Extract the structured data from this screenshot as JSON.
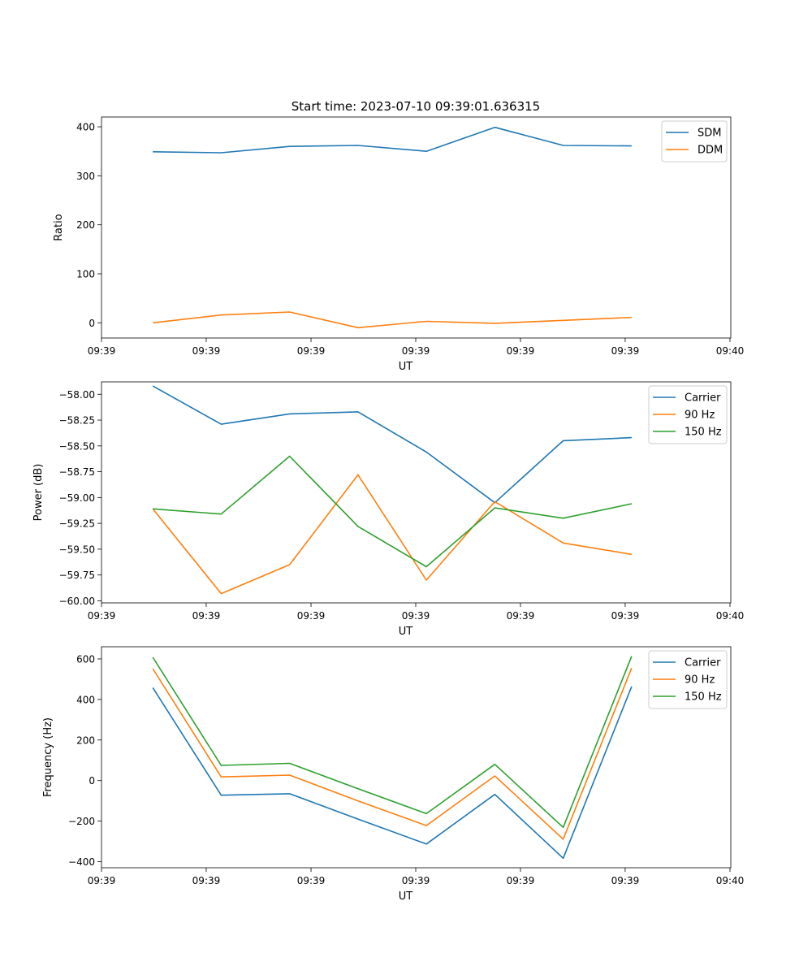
{
  "title": "Start time: 2023-07-10 09:39:01.636315",
  "colors": {
    "blue": "#1f77b4",
    "orange": "#ff7f0e",
    "green": "#2ca02c"
  },
  "chart_data": [
    {
      "type": "line",
      "title": "Start time: 2023-07-10 09:39:01.636315",
      "xlabel": "UT",
      "ylabel": "Ratio",
      "x": [
        1,
        2,
        3,
        4,
        5,
        6,
        7,
        8
      ],
      "xlim": [
        0.25,
        9.45
      ],
      "xticks": [
        0.25,
        1.781,
        3.313,
        4.844,
        6.375,
        7.906,
        9.438
      ],
      "xtick_labels": [
        "09:39",
        "09:39",
        "09:39",
        "09:39",
        "09:39",
        "09:39",
        "09:40"
      ],
      "ylim": [
        -31,
        420
      ],
      "yticks": [
        0,
        100,
        200,
        300,
        400
      ],
      "ytick_labels": [
        "0",
        "100",
        "200",
        "300",
        "400"
      ],
      "legend": "top-right",
      "series": [
        {
          "name": "SDM",
          "color": "#1f77b4",
          "values": [
            349,
            347,
            360,
            362,
            350,
            399,
            362,
            361
          ]
        },
        {
          "name": "DDM",
          "color": "#ff7f0e",
          "values": [
            0,
            16,
            22,
            -10,
            3,
            -1,
            5,
            11
          ]
        }
      ]
    },
    {
      "type": "line",
      "title": "",
      "xlabel": "UT",
      "ylabel": "Power (dB)",
      "x": [
        1,
        2,
        3,
        4,
        5,
        6,
        7,
        8
      ],
      "xlim": [
        0.25,
        9.45
      ],
      "xticks": [
        0.25,
        1.781,
        3.313,
        4.844,
        6.375,
        7.906,
        9.438
      ],
      "xtick_labels": [
        "09:39",
        "09:39",
        "09:39",
        "09:39",
        "09:39",
        "09:39",
        "09:40"
      ],
      "ylim": [
        -60.02,
        -57.88
      ],
      "yticks": [
        -58.0,
        -58.25,
        -58.5,
        -58.75,
        -59.0,
        -59.25,
        -59.5,
        -59.75,
        -60.0
      ],
      "ytick_labels": [
        "−58.00",
        "−58.25",
        "−58.50",
        "−58.75",
        "−59.00",
        "−59.25",
        "−59.50",
        "−59.75",
        "−60.00"
      ],
      "legend": "top-right",
      "series": [
        {
          "name": "Carrier",
          "color": "#1f77b4",
          "values": [
            -57.92,
            -58.29,
            -58.19,
            -58.17,
            -58.56,
            -59.05,
            -58.45,
            -58.42
          ]
        },
        {
          "name": "90 Hz",
          "color": "#ff7f0e",
          "values": [
            -59.11,
            -59.93,
            -59.65,
            -58.78,
            -59.8,
            -59.04,
            -59.44,
            -59.55
          ]
        },
        {
          "name": "150 Hz",
          "color": "#2ca02c",
          "values": [
            -59.11,
            -59.16,
            -58.6,
            -59.28,
            -59.67,
            -59.1,
            -59.2,
            -59.06
          ]
        }
      ]
    },
    {
      "type": "line",
      "title": "",
      "xlabel": "UT",
      "ylabel": "Frequency (Hz)",
      "x": [
        1,
        2,
        3,
        4,
        5,
        6,
        7,
        8
      ],
      "xlim": [
        0.25,
        9.45
      ],
      "xticks": [
        0.25,
        1.781,
        3.313,
        4.844,
        6.375,
        7.906,
        9.438
      ],
      "xtick_labels": [
        "09:39",
        "09:39",
        "09:39",
        "09:39",
        "09:39",
        "09:39",
        "09:40"
      ],
      "ylim": [
        -430,
        660
      ],
      "yticks": [
        600,
        400,
        200,
        0,
        -200,
        -400
      ],
      "ytick_labels": [
        "600",
        "400",
        "200",
        "0",
        "−200",
        "−400"
      ],
      "legend": "top-right",
      "series": [
        {
          "name": "Carrier",
          "color": "#1f77b4",
          "values": [
            458,
            -72,
            -65,
            -190,
            -313,
            -68,
            -383,
            464
          ]
        },
        {
          "name": "90 Hz",
          "color": "#ff7f0e",
          "values": [
            552,
            18,
            27,
            -100,
            -222,
            23,
            -289,
            555
          ]
        },
        {
          "name": "150 Hz",
          "color": "#2ca02c",
          "values": [
            608,
            75,
            85,
            -40,
            -163,
            80,
            -231,
            613
          ]
        }
      ]
    }
  ]
}
